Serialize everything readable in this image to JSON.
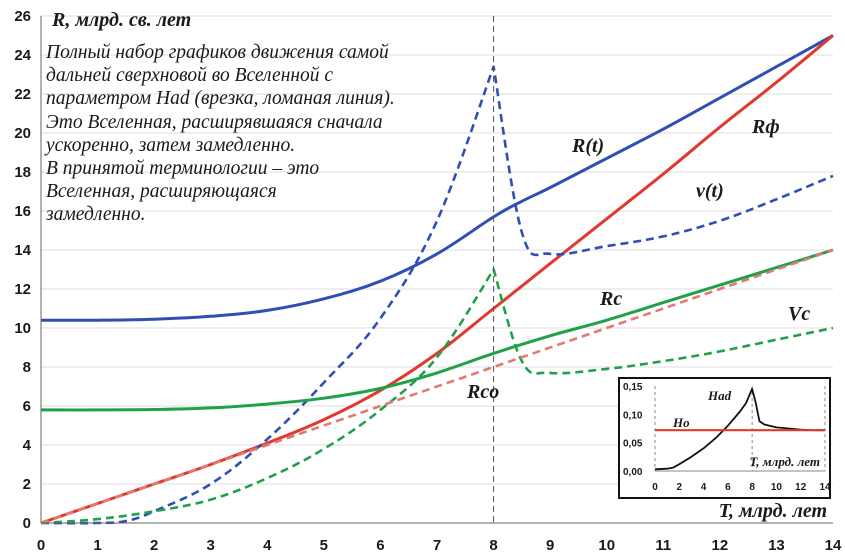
{
  "chart_data": {
    "type": "line",
    "xlabel": "T, млрд. лет",
    "ylabel": "R, млрд. св. лет",
    "xlim": [
      0,
      14
    ],
    "ylim": [
      0,
      26
    ],
    "x_ticks": [
      0,
      1,
      2,
      3,
      4,
      5,
      6,
      7,
      8,
      9,
      10,
      11,
      12,
      13,
      14
    ],
    "y_ticks": [
      0,
      2,
      4,
      6,
      8,
      10,
      12,
      14,
      16,
      18,
      20,
      22,
      24,
      26
    ],
    "grid": "horizontal",
    "vertical_marker_x": 8,
    "annotation_lines": [
      "Полный набор графиков движения самой",
      "дальней сверхновой во Вселенной с",
      "параметром Had (врезка, ломаная линия).",
      "Это Вселенная, расширявшаяся сначала",
      "ускоренно, затем замедленно.",
      "В принятой терминологии – это",
      "Вселенная, расширяющаяся",
      "замедленно."
    ],
    "series": [
      {
        "label": "R(t)",
        "color": "#2f4fb5",
        "style": "solid",
        "x": [
          0,
          1,
          2,
          3,
          4,
          5,
          6,
          7,
          8,
          8.5,
          9,
          10,
          11,
          12,
          13,
          14
        ],
        "y": [
          10.4,
          10.4,
          10.45,
          10.6,
          10.9,
          11.5,
          12.4,
          13.8,
          15.7,
          16.5,
          17.2,
          18.7,
          20.2,
          21.8,
          23.4,
          25.0
        ]
      },
      {
        "label": "Rф",
        "color": "#e03a2e",
        "style": "solid",
        "x": [
          0,
          1,
          2,
          3,
          4,
          5,
          6,
          7,
          8,
          9,
          10,
          11,
          12,
          13,
          14
        ],
        "y": [
          0,
          1.0,
          2.0,
          3.0,
          4.1,
          5.3,
          6.8,
          8.7,
          11.0,
          13.3,
          15.6,
          17.9,
          20.3,
          22.6,
          25.0
        ]
      },
      {
        "label": "v(t)",
        "color": "#2f4fb5",
        "style": "dashed",
        "x": [
          0,
          1,
          1.5,
          2,
          3,
          4,
          5,
          6,
          7,
          8,
          8.5,
          9,
          10,
          11,
          12,
          13,
          14
        ],
        "y": [
          0,
          0,
          0.1,
          0.6,
          2.0,
          4.3,
          7.2,
          10.5,
          15.5,
          23.4,
          14.9,
          13.8,
          14.2,
          14.7,
          15.5,
          16.6,
          17.8
        ]
      },
      {
        "label": "Rc",
        "color": "#21a04a",
        "style": "solid",
        "x": [
          0,
          1,
          2,
          3,
          4,
          5,
          6,
          7,
          8,
          9,
          10,
          11,
          12,
          13,
          14
        ],
        "y": [
          5.8,
          5.8,
          5.82,
          5.9,
          6.1,
          6.4,
          6.9,
          7.7,
          8.7,
          9.6,
          10.4,
          11.3,
          12.2,
          13.1,
          14.0
        ]
      },
      {
        "label": "Vc",
        "color": "#21a04a",
        "style": "dashed",
        "x": [
          0,
          1,
          2,
          3,
          4,
          5,
          6,
          7,
          8,
          8.5,
          9,
          10,
          11,
          12,
          13,
          14
        ],
        "y": [
          0,
          0.2,
          0.6,
          1.2,
          2.3,
          3.8,
          5.8,
          8.5,
          13.0,
          8.3,
          7.7,
          7.9,
          8.3,
          8.8,
          9.4,
          10.0
        ]
      },
      {
        "label": "Rco",
        "color": "#e37a72",
        "style": "dashed",
        "x": [
          0,
          14
        ],
        "y": [
          0,
          14.0
        ]
      }
    ],
    "inset": {
      "xlabel": "T, млрд. лет",
      "xlim": [
        0,
        14
      ],
      "ylim": [
        0,
        0.15
      ],
      "x_ticks": [
        0,
        2,
        4,
        6,
        8,
        10,
        12,
        14
      ],
      "y_ticks": [
        "0,00",
        "0,05",
        "0,10",
        "0,15"
      ],
      "series": [
        {
          "label": "Had",
          "color": "#111111",
          "style": "solid",
          "x": [
            0,
            1,
            1.5,
            2,
            3,
            4,
            5,
            6,
            7,
            7.5,
            8,
            8.3,
            8.6,
            9,
            10,
            11,
            12,
            13,
            14
          ],
          "y": [
            0.003,
            0.004,
            0.006,
            0.012,
            0.025,
            0.04,
            0.058,
            0.08,
            0.105,
            0.12,
            0.145,
            0.12,
            0.088,
            0.082,
            0.077,
            0.075,
            0.073,
            0.072,
            0.072
          ]
        },
        {
          "label": "Ho",
          "color": "#e03a2e",
          "style": "solid",
          "x": [
            0,
            14
          ],
          "y": [
            0.072,
            0.072
          ]
        }
      ]
    }
  }
}
